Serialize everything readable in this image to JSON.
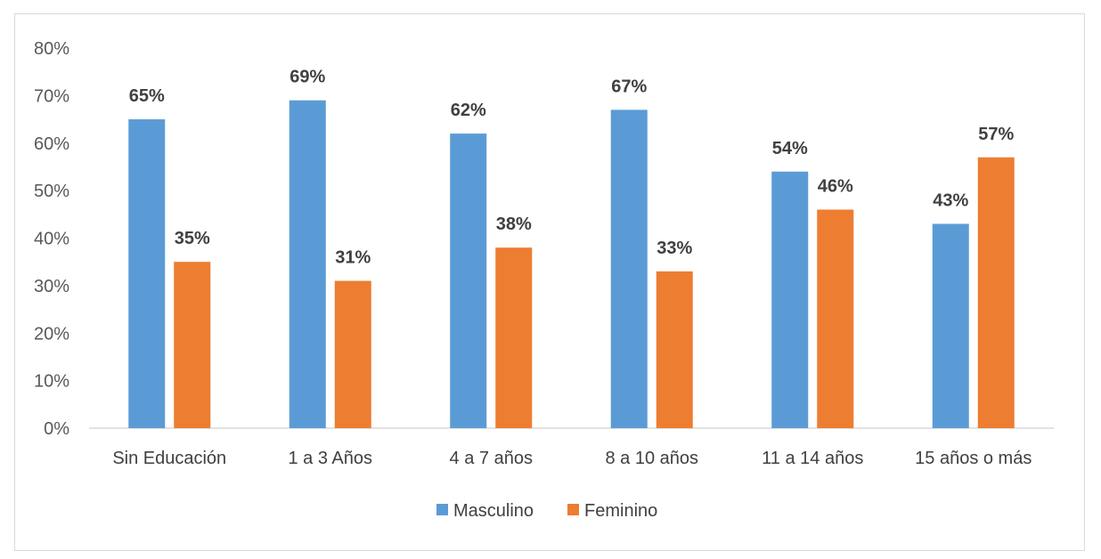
{
  "chart_data": {
    "type": "bar",
    "title": "",
    "xlabel": "",
    "ylabel": "",
    "categories": [
      "Sin Educación",
      "1 a 3 Años",
      "4 a 7 años",
      "8 a 10 años",
      "11 a 14 años",
      "15 años o más"
    ],
    "series": [
      {
        "name": "Masculino",
        "color": "#5b9bd5",
        "values": [
          65,
          69,
          62,
          67,
          54,
          43
        ],
        "labels": [
          "65%",
          "69%",
          "62%",
          "67%",
          "54%",
          "43%"
        ]
      },
      {
        "name": "Feminino",
        "color": "#ed7d31",
        "values": [
          35,
          31,
          38,
          33,
          46,
          57
        ],
        "labels": [
          "35%",
          "31%",
          "38%",
          "33%",
          "46%",
          "57%"
        ]
      }
    ],
    "ylim": [
      0,
      80
    ],
    "yticks": [
      0,
      10,
      20,
      30,
      40,
      50,
      60,
      70,
      80
    ],
    "ytick_labels": [
      "0%",
      "10%",
      "20%",
      "30%",
      "40%",
      "50%",
      "60%",
      "70%",
      "80%"
    ],
    "grid": false,
    "legend_position": "bottom"
  }
}
